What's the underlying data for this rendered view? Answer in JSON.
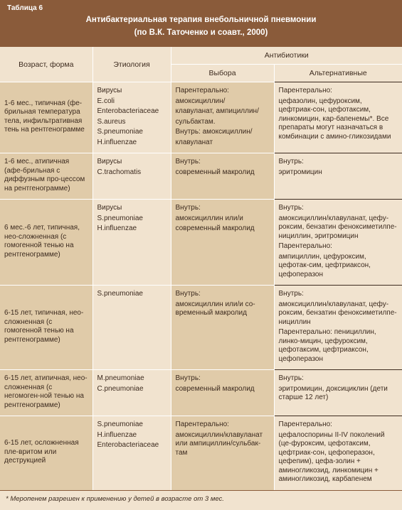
{
  "colors": {
    "headerBg": "#8a5b3a",
    "headerText": "#ffffff",
    "bodyBg": "#f1e3cf",
    "cellBg1": "#e0cba9",
    "cellBg2": "#f1e3cf",
    "border": "#ffffff",
    "footBorder": "#8a5b3a",
    "text": "#3d2b1f"
  },
  "caption": "Таблица 6",
  "title": "Антибактериальная терапия внебольничной пневмонии\n(по В.К. Таточенко и соавт., 2000)",
  "headers": {
    "col1": "Возраст, форма",
    "col2": "Этиология",
    "groupAnti": "Антибиотики",
    "col3": "Выбора",
    "col4": "Альтернативные"
  },
  "rows": [
    {
      "age": "1-6 мес., типичная (фе-брильная температура тела, инфильтративная тень на рентгенограмме",
      "etiology": "Вирусы\nE.coli\nEnterobacteriaceae\nS.aureus\nS.pneumoniae\nH.influenzae",
      "choice": "Парентерально:\nамоксициллин/\nклавуланат, ампициллин/\nсульбактам.\nВнутрь: амоксициллин/\nклавуланат",
      "alt": "Парентерально:\nцефазолин, цефуроксим, цефтриак-сон, цефотаксим, линкомицин, кар-бапенемы*. Все препараты могут назначаться в комбинации с амино-гликозидами"
    },
    {
      "age": "1-6 мес., атипичная (афе-брильная с диффузным про-цессом на рентгенограмме)",
      "etiology": "Вирусы\nC.trachomatis",
      "choice": "Внутрь:\nсовременный макролид",
      "alt": "Внутрь:\nэритромицин"
    },
    {
      "age": "6 мес.-6 лет, типичная, нео-сложненная (с гомогенной тенью на рентгенограмме)",
      "etiology": "Вирусы\nS.pneumoniae\nH.influenzae",
      "choice": "Внутрь:\nамоксициллин или/и\nсовременный макролид",
      "alt": "Внутрь:\nамоксициллин/клавуланат, цефу-роксим, бензатин феноксиметилпе-нициллин, эритромицин\nПарентерально:\nампициллин, цефуроксим, цефотак-сим, цефтриаксон, цефоперазон"
    },
    {
      "age": "6-15 лет, типичная, нео-сложненная (с гомогенной тенью на рентгенограмме)",
      "etiology": "S.pneumoniae",
      "choice": "Внутрь:\nамоксициллин или/и со-временный макролид",
      "alt": "Внутрь:\nамоксициллин/клавуланат, цефу-роксим, бензатин феноксиметилпе-нициллин\nПарентерально: пенициллин, линко-мицин, цефуроксим, цефотаксим, цефтриаксон, цефоперазон"
    },
    {
      "age": "6-15 лет, атипичная, нео-сложненная (с негомоген-ной тенью на рентгенограмме)",
      "etiology": "M.pneumoniae\nC.pneumoniae",
      "choice": "Внутрь:\nсовременный макролид",
      "alt": "Внутрь:\nэритромицин, доксициклин (дети старше 12 лет)"
    },
    {
      "age": "6-15 лет, осложненная пле-вритом или деструкцией",
      "etiology": "S.pneumoniae\nH.influenzae\nEnterobacteriaceae",
      "choice": "Парентерально:\nамоксициллин/клавуланат или ампициллин/сульбак-там",
      "alt": "Парентерально:\nцефалоспорины II-IV поколений (це-фуроксим, цефотаксим, цефтриак-сон, цефоперазон, цефепим), цефа-золин + аминогликозид, линкомицин + аминогликозид, карбапенем"
    }
  ],
  "footnote": "* Меропенем разрешен к применению у детей в возрасте от 3 мес."
}
